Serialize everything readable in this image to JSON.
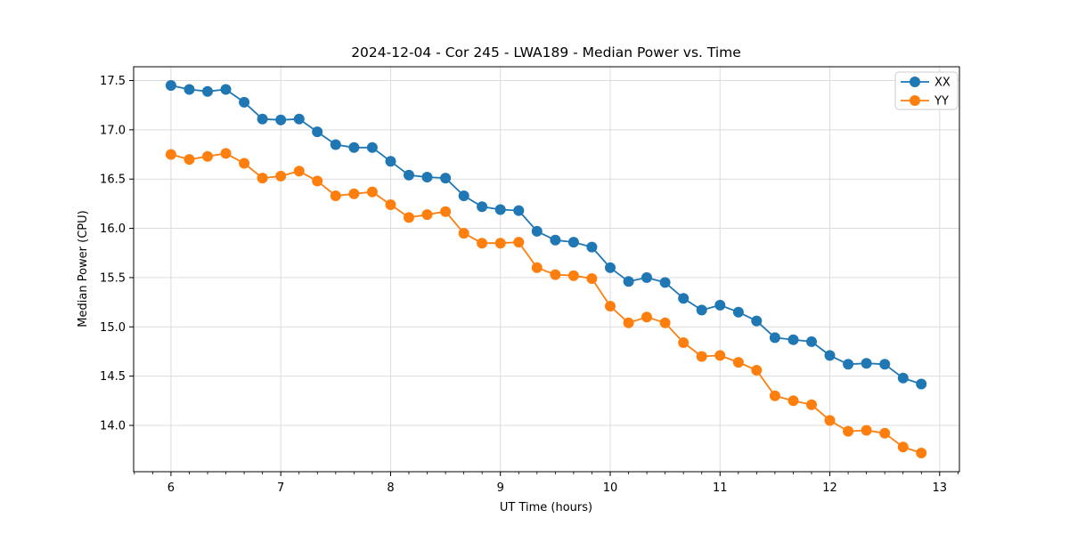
{
  "chart_data": {
    "type": "line",
    "title": "2024-12-04 - Cor 245 - LWA189 - Median Power vs. Time",
    "xlabel": "UT Time (hours)",
    "ylabel": "Median Power (CPU)",
    "xlim": [
      5.66,
      13.18
    ],
    "ylim": [
      13.53,
      17.64
    ],
    "x_ticks": [
      6,
      7,
      8,
      9,
      10,
      11,
      12,
      13
    ],
    "y_ticks": [
      14.0,
      14.5,
      15.0,
      15.5,
      16.0,
      16.5,
      17.0,
      17.5
    ],
    "x_minor_interval": 0.166667,
    "grid": true,
    "grid_color": "#dcdcdc",
    "axis_color": "#000000",
    "marker_radius": 6,
    "line_width": 1.8,
    "legend": {
      "position": "upper right",
      "border_color": "#cccccc",
      "background": "#ffffff"
    },
    "x": [
      6.0,
      6.167,
      6.333,
      6.5,
      6.667,
      6.833,
      7.0,
      7.167,
      7.333,
      7.5,
      7.667,
      7.833,
      8.0,
      8.167,
      8.333,
      8.5,
      8.667,
      8.833,
      9.0,
      9.167,
      9.333,
      9.5,
      9.667,
      9.833,
      10.0,
      10.167,
      10.333,
      10.5,
      10.667,
      10.833,
      11.0,
      11.167,
      11.333,
      11.5,
      11.667,
      11.833,
      12.0,
      12.167,
      12.333,
      12.5,
      12.667,
      12.833
    ],
    "series": [
      {
        "name": "XX",
        "color": "#1f77b4",
        "values": [
          17.45,
          17.41,
          17.39,
          17.41,
          17.28,
          17.11,
          17.1,
          17.11,
          16.98,
          16.85,
          16.82,
          16.82,
          16.68,
          16.54,
          16.52,
          16.51,
          16.33,
          16.22,
          16.19,
          16.18,
          15.97,
          15.88,
          15.86,
          15.81,
          15.6,
          15.46,
          15.5,
          15.45,
          15.29,
          15.17,
          15.22,
          15.15,
          15.06,
          14.89,
          14.87,
          14.85,
          14.71,
          14.62,
          14.63,
          14.62,
          14.48,
          14.42
        ]
      },
      {
        "name": "YY",
        "color": "#ff7f0e",
        "values": [
          16.75,
          16.7,
          16.73,
          16.76,
          16.66,
          16.51,
          16.53,
          16.58,
          16.48,
          16.33,
          16.35,
          16.37,
          16.24,
          16.11,
          16.14,
          16.17,
          15.95,
          15.85,
          15.85,
          15.86,
          15.6,
          15.53,
          15.52,
          15.49,
          15.21,
          15.04,
          15.1,
          15.04,
          14.84,
          14.7,
          14.71,
          14.64,
          14.56,
          14.3,
          14.25,
          14.21,
          14.05,
          13.94,
          13.95,
          13.92,
          13.78,
          13.72
        ]
      }
    ]
  }
}
